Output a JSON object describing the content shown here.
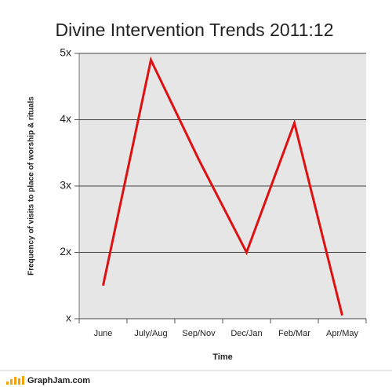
{
  "chart_data": {
    "type": "line",
    "title": "Divine Intervention Trends 2011:12",
    "x_label": "Time",
    "y_label": "Frequency of visits to place of worship & rituals",
    "categories": [
      "June",
      "July/Aug",
      "Sep/Nov",
      "Dec/Jan",
      "Feb/Mar",
      "Apr/May"
    ],
    "values": [
      1.5,
      4.9,
      3.4,
      2,
      3.95,
      1.05
    ],
    "color": "#dd1111",
    "ylim": [
      1,
      5
    ],
    "yticks": [
      {
        "value": 1,
        "label": "x"
      },
      {
        "value": 2,
        "label": "2x"
      },
      {
        "value": 3,
        "label": "3x"
      },
      {
        "value": 4,
        "label": "4x"
      },
      {
        "value": 5,
        "label": "5x"
      }
    ],
    "grid": true
  },
  "footer": "GraphJam.com"
}
